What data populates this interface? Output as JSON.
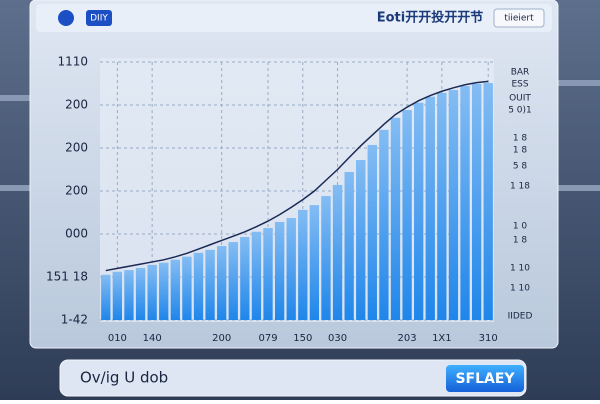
{
  "header": {
    "badge": "DIIY",
    "title": "Eoti开开投开开节",
    "button": "tiieiert"
  },
  "side_labels": [
    "BAR",
    "ESS",
    "OUIT",
    "5 0)1",
    "1 8",
    "1 8",
    "5 8",
    "1 18",
    "1 0",
    "1 8",
    "1 10",
    "1 10",
    "IIDED"
  ],
  "footer": {
    "text": "Ov/ig U dob",
    "button": "SFLAEY"
  },
  "chart_data": {
    "type": "bar",
    "categories": [
      null,
      "010",
      null,
      null,
      "140",
      null,
      null,
      null,
      null,
      null,
      "200",
      null,
      null,
      null,
      "079",
      null,
      null,
      "150",
      null,
      null,
      "030",
      null,
      null,
      null,
      null,
      null,
      "203",
      null,
      null,
      "1X1",
      null,
      null,
      null,
      "310"
    ],
    "values": [
      1.05,
      1.12,
      1.16,
      1.21,
      1.28,
      1.33,
      1.4,
      1.47,
      1.56,
      1.63,
      1.72,
      1.81,
      1.93,
      2.05,
      2.14,
      2.28,
      2.37,
      2.56,
      2.67,
      2.88,
      3.14,
      3.44,
      3.72,
      4.07,
      4.42,
      4.7,
      4.88,
      5.05,
      5.19,
      5.28,
      5.35,
      5.44,
      5.49,
      5.51
    ],
    "trend": [
      1.15,
      1.2,
      1.25,
      1.3,
      1.35,
      1.4,
      1.47,
      1.55,
      1.65,
      1.75,
      1.85,
      1.95,
      2.05,
      2.17,
      2.3,
      2.45,
      2.62,
      2.8,
      3.0,
      3.25,
      3.5,
      3.78,
      4.05,
      4.3,
      4.55,
      4.78,
      4.95,
      5.1,
      5.22,
      5.32,
      5.4,
      5.47,
      5.52,
      5.55
    ],
    "color": "#1f86ea",
    "trend_color": "#1b2a55",
    "ylim": [
      0,
      6
    ],
    "yticks": [
      {
        "value": 6,
        "label": "1110"
      },
      {
        "value": 5,
        "label": "200"
      },
      {
        "value": 4,
        "label": "200"
      },
      {
        "value": 3,
        "label": "200"
      },
      {
        "value": 2,
        "label": "000"
      },
      {
        "value": 1,
        "label": "151 18"
      },
      {
        "value": 0,
        "label": "1-42"
      }
    ],
    "grid": true
  }
}
